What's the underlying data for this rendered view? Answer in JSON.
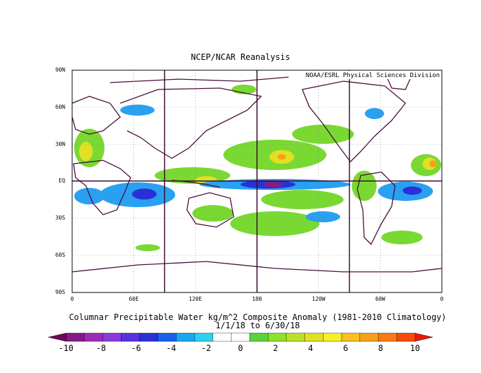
{
  "header": {
    "title": "NCEP/NCAR Reanalysis",
    "credit": "NOAA/ESRL Physical Sciences Division"
  },
  "axes": {
    "lat_labels": [
      "90N",
      "60N",
      "30N",
      "EQ",
      "30S",
      "60S",
      "90S"
    ],
    "lon_labels": [
      "0",
      "60E",
      "120E",
      "180",
      "120W",
      "60W",
      "0"
    ]
  },
  "caption": {
    "line1": "Columnar Precipitable Water kg/m^2 Composite Anomaly (1981-2010 Climatology)",
    "line2": "1/1/18  to 6/30/18"
  },
  "colorbar": {
    "ticks": [
      "-10",
      "-8",
      "-6",
      "-4",
      "-2",
      "0",
      "2",
      "4",
      "6",
      "8",
      "10"
    ],
    "colors": [
      "#6a0a5a",
      "#861a88",
      "#a02ab8",
      "#8a3ad8",
      "#5a30e0",
      "#2a30d8",
      "#1860e8",
      "#1aa6f0",
      "#28d2f0",
      "#ffffff",
      "#ffffff",
      "#5ad23a",
      "#8ee028",
      "#bce028",
      "#e0e024",
      "#f8ee28",
      "#f8c020",
      "#f8a018",
      "#f87a12",
      "#f84a0c",
      "#e81a0a"
    ]
  },
  "colors": {
    "coast": "#4a0a3a",
    "pos": "#7ad832",
    "neg": "#2aa0f0"
  },
  "highlights": {
    "strong_negative": "central tropical Pacific south of equator near 180-160W",
    "positive": "subtropical North Pacific, western Pacific warm pool, South Pacific"
  }
}
